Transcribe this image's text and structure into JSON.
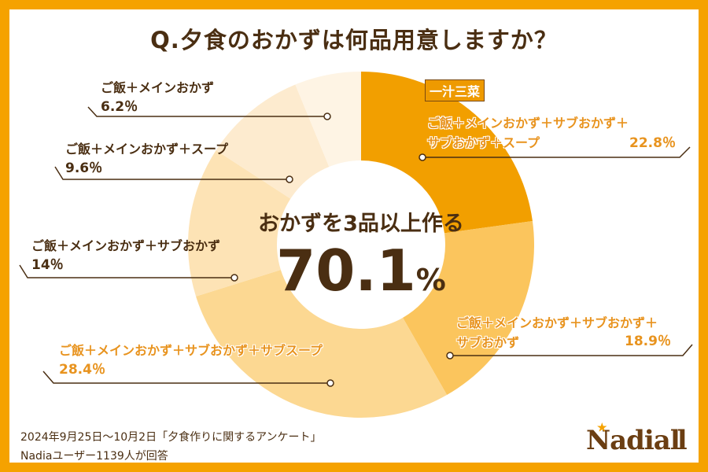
{
  "title": "Q.夕食のおかずは何品用意しますか？",
  "center": {
    "line1": "おかずを3品以上作る",
    "value": "70.1",
    "unit": "%"
  },
  "tag": "一汁三菜",
  "chart_data": {
    "type": "pie",
    "donut": true,
    "start": "top",
    "direction": "clockwise",
    "categories": [
      "ご飯＋メインおかず＋サブおかず＋サブおかず＋スープ",
      "ご飯＋メインおかず＋サブおかず＋サブおかず",
      "ご飯＋メインおかず＋サブおかず＋サブスープ",
      "ご飯＋メインおかず＋サブおかず",
      "ご飯＋メインおかず＋スープ",
      "ご飯＋メインおかず"
    ],
    "values": [
      22.8,
      18.9,
      28.4,
      14,
      9.6,
      6.2
    ],
    "colors": [
      "#F29F00",
      "#FBC55D",
      "#FCD892",
      "#FDE3B5",
      "#FDEBCF",
      "#FEF4E4"
    ],
    "labels": [
      {
        "line1": "ご飯＋メインおかず＋サブおかず＋",
        "line2": "サブおかず＋スープ",
        "pct": "22.8％"
      },
      {
        "line1": "ご飯＋メインおかず＋サブおかず＋",
        "line2": "サブおかず",
        "pct": "18.9％"
      },
      {
        "line1": "ご飯＋メインおかず＋サブおかず＋サブスープ",
        "pct": "28.4％"
      },
      {
        "line1": "ご飯＋メインおかず＋サブおかず",
        "pct": "14％"
      },
      {
        "line1": "ご飯＋メインおかず＋スープ",
        "pct": "9.6％"
      },
      {
        "line1": "ご飯＋メインおかず",
        "pct": "6.2％"
      }
    ]
  },
  "footer": {
    "line1": "2024年9月25日〜10月2日「夕食作りに関するアンケート」",
    "line2": "Nadiaユーザー1139人が回答"
  },
  "logo": "Nadia",
  "colors": {
    "frame": "#F5A200",
    "text": "#4A2E12",
    "highlight": "#E8931E"
  }
}
